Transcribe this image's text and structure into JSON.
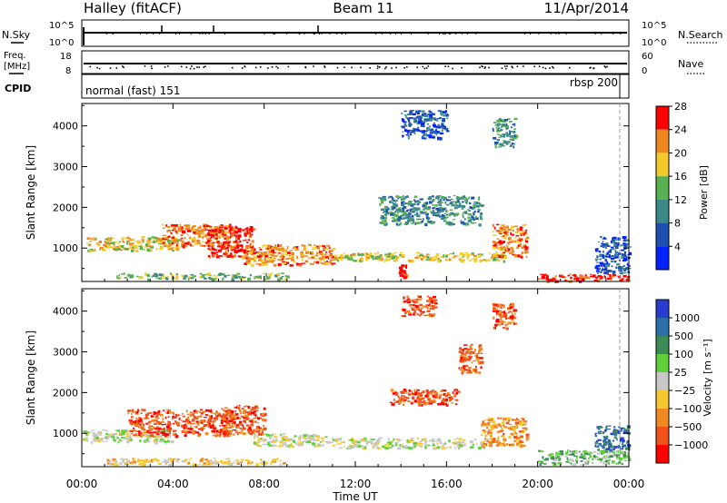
{
  "header": {
    "station": "Halley (fitACF)",
    "beam": "Beam 11",
    "date": "11/Apr/2014"
  },
  "top_panels": {
    "nsky_label": "N.Sky",
    "nsky_ticks": [
      "10^5",
      "10^0"
    ],
    "nsearch_label": "N.Search",
    "nsearch_ticks": [
      "10^5",
      "10^0"
    ],
    "freq_label_1": "Freq.",
    "freq_label_2": "[MHz]",
    "freq_ticks": [
      "18",
      "8"
    ],
    "nave_label": "Nave",
    "nave_ticks": [
      "60",
      "0"
    ],
    "cpid_label": "CPID",
    "cpid_modes": [
      {
        "name": "normal (fast) 151",
        "start_hour": 0,
        "end_hour": 23.5
      },
      {
        "name": "rbsp 200",
        "start_hour": 23.5,
        "end_hour": 24
      }
    ]
  },
  "chart_data": [
    {
      "type": "heatmap",
      "name": "power",
      "ylabel": "Slant Range [km]",
      "xlabel": "",
      "xlim": [
        0,
        24
      ],
      "ylim": [
        180,
        4550
      ],
      "yticks": [
        1000,
        2000,
        3000,
        4000
      ],
      "colorbar_label": "Power [dB]",
      "colorbar_ticks": [
        "4",
        "8",
        "12",
        "16",
        "20",
        "24",
        "28"
      ],
      "colorbar_colors": [
        "#0022ff",
        "#1e4fb0",
        "#3c8a88",
        "#58b050",
        "#f2cb2a",
        "#f08820",
        "#ff0000"
      ],
      "regions": [
        {
          "x0": 0.2,
          "x1": 4.2,
          "r0": 950,
          "r1": 1300,
          "level": 4
        },
        {
          "x0": 3.5,
          "x1": 6.5,
          "r0": 1050,
          "r1": 1600,
          "level": 5
        },
        {
          "x0": 5.5,
          "x1": 7.5,
          "r0": 800,
          "r1": 1550,
          "level": 6
        },
        {
          "x0": 7.0,
          "x1": 11.0,
          "r0": 600,
          "r1": 1100,
          "level": 5
        },
        {
          "x0": 1.5,
          "x1": 9.0,
          "r0": 250,
          "r1": 400,
          "level": 3
        },
        {
          "x0": 11.0,
          "x1": 18.5,
          "r0": 700,
          "r1": 900,
          "level": 4
        },
        {
          "x0": 18.0,
          "x1": 19.5,
          "r0": 800,
          "r1": 1600,
          "level": 5
        },
        {
          "x0": 13.0,
          "x1": 17.5,
          "r0": 1600,
          "r1": 2300,
          "level": 2
        },
        {
          "x0": 14.0,
          "x1": 16.0,
          "r0": 3700,
          "r1": 4400,
          "level": 1
        },
        {
          "x0": 18.0,
          "x1": 19.0,
          "r0": 3500,
          "r1": 4200,
          "level": 2
        },
        {
          "x0": 20.0,
          "x1": 24.0,
          "r0": 200,
          "r1": 380,
          "level": 6
        },
        {
          "x0": 13.9,
          "x1": 14.2,
          "r0": 300,
          "r1": 600,
          "level": 6
        },
        {
          "x0": 22.5,
          "x1": 24.0,
          "r0": 400,
          "r1": 1300,
          "level": 1
        }
      ]
    },
    {
      "type": "heatmap",
      "name": "velocity",
      "ylabel": "Slant Range [km]",
      "xlabel": "Time UT",
      "xlim": [
        0,
        24
      ],
      "ylim": [
        180,
        4550
      ],
      "yticks": [
        1000,
        2000,
        3000,
        4000
      ],
      "xticks": [
        "00:00",
        "04:00",
        "08:00",
        "12:00",
        "16:00",
        "20:00",
        "00:00"
      ],
      "colorbar_label": "Velocity [m s⁻¹]",
      "colorbar_ticks": [
        "1000",
        "500",
        "100",
        "25",
        "−25",
        "−100",
        "−500",
        "−1000"
      ],
      "colorbar_colors": [
        "#2a3bd0",
        "#2d6fa8",
        "#3c8a55",
        "#5fcf3a",
        "#c8c8c8",
        "#f5c830",
        "#f08a20",
        "#f0521a",
        "#ff0000"
      ],
      "regions": [
        {
          "x0": 0.0,
          "x1": 4.0,
          "r0": 800,
          "r1": 1100,
          "level": 4
        },
        {
          "x0": 2.0,
          "x1": 6.5,
          "r0": 950,
          "r1": 1600,
          "level": 7
        },
        {
          "x0": 6.0,
          "x1": 8.0,
          "r0": 1000,
          "r1": 1700,
          "level": 7
        },
        {
          "x0": 7.5,
          "x1": 11.0,
          "r0": 700,
          "r1": 1000,
          "level": 4
        },
        {
          "x0": 11.0,
          "x1": 18.0,
          "r0": 650,
          "r1": 900,
          "level": 4
        },
        {
          "x0": 17.5,
          "x1": 19.5,
          "r0": 700,
          "r1": 1400,
          "level": 6
        },
        {
          "x0": 13.5,
          "x1": 16.5,
          "r0": 1700,
          "r1": 2100,
          "level": 7
        },
        {
          "x0": 14.0,
          "x1": 15.5,
          "r0": 3900,
          "r1": 4400,
          "level": 7
        },
        {
          "x0": 18.0,
          "x1": 19.0,
          "r0": 3600,
          "r1": 4200,
          "level": 7
        },
        {
          "x0": 16.5,
          "x1": 17.5,
          "r0": 2500,
          "r1": 3200,
          "level": 7
        },
        {
          "x0": 1.0,
          "x1": 9.0,
          "r0": 250,
          "r1": 400,
          "level": 5
        },
        {
          "x0": 20.0,
          "x1": 24.0,
          "r0": 250,
          "r1": 600,
          "level": 3
        },
        {
          "x0": 22.5,
          "x1": 24.0,
          "r0": 600,
          "r1": 1200,
          "level": 1
        }
      ]
    }
  ]
}
